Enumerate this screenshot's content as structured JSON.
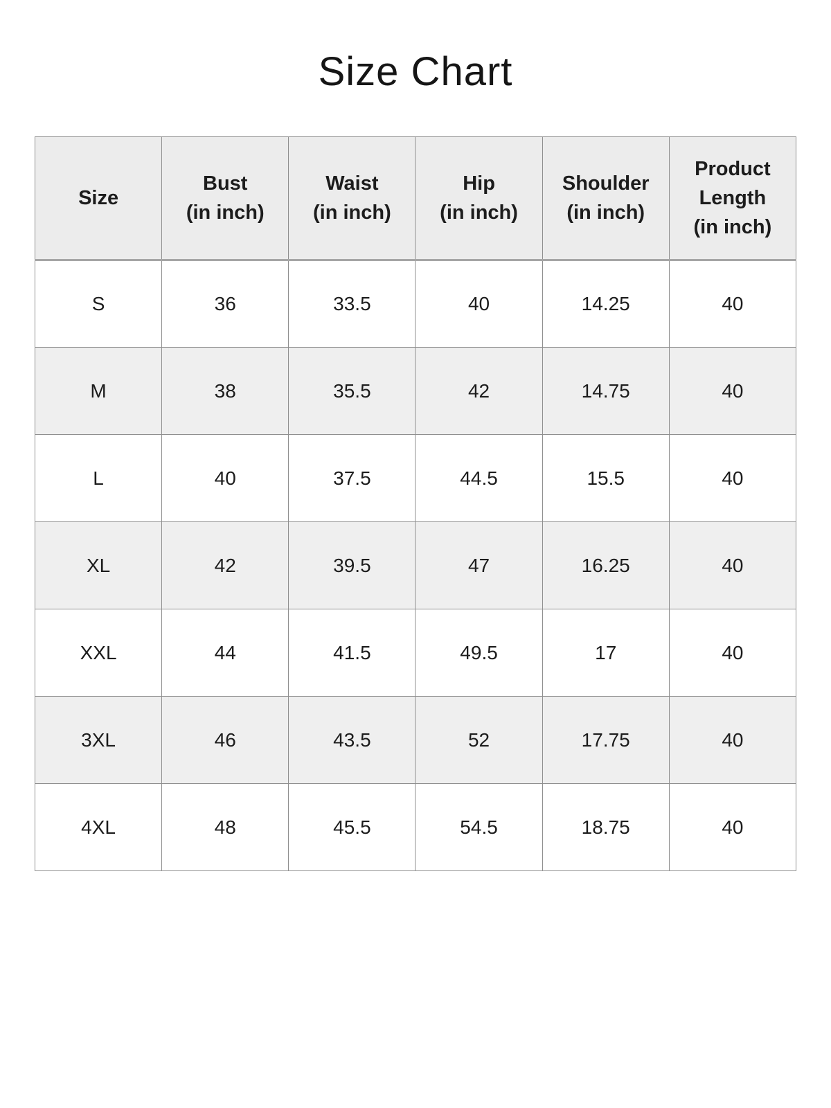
{
  "page": {
    "title": "Size Chart"
  },
  "colors": {
    "header_bg": "#ececec",
    "row_alt_bg": "#efefef",
    "row_bg": "#ffffff",
    "border": "#8f8f8f",
    "border_heavy": "#a6a6a6",
    "text": "#1c1c1c",
    "page_bg": "#ffffff"
  },
  "table": {
    "headers": [
      [
        "Size"
      ],
      [
        "Bust",
        "(in inch)"
      ],
      [
        "Waist",
        "(in inch)"
      ],
      [
        "Hip",
        "(in inch)"
      ],
      [
        "Shoulder",
        "(in inch)"
      ],
      [
        "Product",
        "Length",
        "(in inch)"
      ]
    ],
    "rows": [
      {
        "size": "S",
        "values": [
          "36",
          "33.5",
          "40",
          "14.25",
          "40"
        ]
      },
      {
        "size": "M",
        "values": [
          "38",
          "35.5",
          "42",
          "14.75",
          "40"
        ]
      },
      {
        "size": "L",
        "values": [
          "40",
          "37.5",
          "44.5",
          "15.5",
          "40"
        ]
      },
      {
        "size": "XL",
        "values": [
          "42",
          "39.5",
          "47",
          "16.25",
          "40"
        ]
      },
      {
        "size": "XXL",
        "values": [
          "44",
          "41.5",
          "49.5",
          "17",
          "40"
        ]
      },
      {
        "size": "3XL",
        "values": [
          "46",
          "43.5",
          "52",
          "17.75",
          "40"
        ]
      },
      {
        "size": "4XL",
        "values": [
          "48",
          "45.5",
          "54.5",
          "18.75",
          "40"
        ]
      }
    ]
  }
}
